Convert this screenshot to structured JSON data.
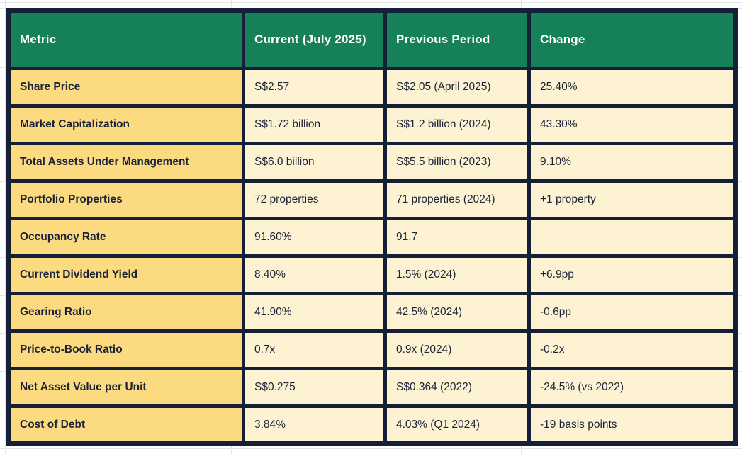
{
  "app": {
    "page_background": "#FFFFFF",
    "gridline_color": "#E4E4E4"
  },
  "table": {
    "colors": {
      "header_bg": "#168158",
      "header_text": "#FFFFFF",
      "metric_column_bg": "#FCDA7F",
      "cell_bg": "#FDF2D2",
      "border": "#161F38",
      "text": "#1B2338"
    },
    "header": {
      "columns": [
        "Metric",
        "Current (July 2025)",
        "Previous Period",
        "Change"
      ]
    },
    "rows": [
      {
        "metric": "Share Price",
        "current": "S$2.57",
        "previous": "S$2.05 (April 2025)",
        "change": "25.40%"
      },
      {
        "metric": "Market Capitalization",
        "current": "S$1.72 billion",
        "previous": "S$1.2 billion (2024)",
        "change": "43.30%"
      },
      {
        "metric": "Total Assets Under Management",
        "current": "S$6.0 billion",
        "previous": "S$5.5 billion (2023)",
        "change": "9.10%"
      },
      {
        "metric": "Portfolio Properties",
        "current": "72 properties",
        "previous": "71 properties (2024)",
        "change": "+1 property"
      },
      {
        "metric": "Occupancy Rate",
        "current": "91.60%",
        "previous": "91.7",
        "change": ""
      },
      {
        "metric": "Current Dividend Yield",
        "current": "8.40%",
        "previous": "1.5% (2024)",
        "change": "+6.9pp"
      },
      {
        "metric": "Gearing Ratio",
        "current": "41.90%",
        "previous": "42.5% (2024)",
        "change": "-0.6pp"
      },
      {
        "metric": "Price-to-Book Ratio",
        "current": "0.7x",
        "previous": "0.9x (2024)",
        "change": "-0.2x"
      },
      {
        "metric": "Net Asset Value per Unit",
        "current": "S$0.275",
        "previous": "S$0.364 (2022)",
        "change": "-24.5% (vs 2022)"
      },
      {
        "metric": "Cost of Debt",
        "current": "3.84%",
        "previous": "4.03% (Q1 2024)",
        "change": "-19 basis points"
      }
    ]
  }
}
